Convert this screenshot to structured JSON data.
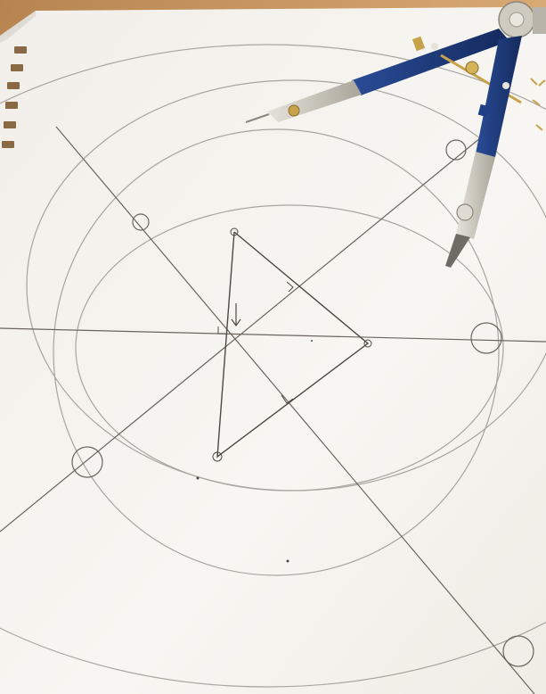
{
  "scene": {
    "subject": "compass-and-straightedge-construction",
    "colors": {
      "wood_table": "#c89a66",
      "wood_table_light": "#d9ad78",
      "paper": "#f7f5f1",
      "paper_shadow": "#e9e6e1",
      "graphite": "#6a645d",
      "compass_blue": "#1f3f86",
      "compass_blue_dark": "#132a5c",
      "compass_metal": "#c9c6bd",
      "compass_gold": "#c8a24b"
    },
    "labels": {
      "right_angle_marks": 3,
      "circle_markers": 5
    }
  }
}
